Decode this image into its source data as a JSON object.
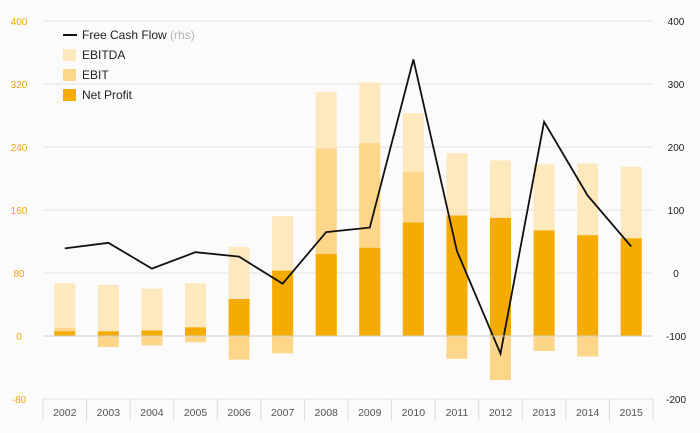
{
  "chart_data": {
    "type": "bar",
    "categories": [
      "2002",
      "2003",
      "2004",
      "2005",
      "2006",
      "2007",
      "2008",
      "2009",
      "2010",
      "2011",
      "2012",
      "2013",
      "2014",
      "2015"
    ],
    "series": [
      {
        "name": "EBITDA",
        "type": "bar",
        "color": "#fee9bf",
        "values": [
          67,
          65,
          60,
          67,
          113,
          152,
          310,
          322,
          283,
          232,
          223,
          218,
          219,
          215
        ]
      },
      {
        "name": "EBIT",
        "type": "bar",
        "color": "#fdd68a",
        "values": [
          10,
          -14,
          -12,
          -8,
          -30,
          -22,
          238,
          245,
          208,
          -29,
          -56,
          -19,
          -26,
          124
        ]
      },
      {
        "name": "Net Profit",
        "type": "bar",
        "color": "#f5ab00",
        "values": [
          6,
          6,
          7,
          11,
          47,
          83,
          104,
          112,
          144,
          153,
          150,
          134,
          128,
          124
        ]
      },
      {
        "name": "Free Cash Flow",
        "name_note": "(rhs)",
        "type": "line",
        "axis": "right",
        "color": "#111111",
        "values": [
          39,
          48,
          7,
          33,
          26,
          -17,
          65,
          72,
          339,
          35,
          -128,
          240,
          123,
          42
        ]
      }
    ],
    "y_left": {
      "min": -80,
      "max": 400,
      "ticks": [
        -80,
        0,
        80,
        160,
        240,
        320,
        400
      ],
      "tick_color": "#f0a500"
    },
    "y_right": {
      "min": -200,
      "max": 400,
      "ticks": [
        -200,
        -100,
        0,
        100,
        200,
        300,
        400
      ],
      "tick_color": "#222222"
    },
    "grid": true,
    "legend": {
      "placement": "top-left",
      "items": [
        {
          "label": "Free Cash Flow",
          "suffix": "(rhs)",
          "marker": "line",
          "color": "#111111"
        },
        {
          "label": "EBITDA",
          "marker": "box",
          "color": "#fee9bf"
        },
        {
          "label": "EBIT",
          "marker": "box",
          "color": "#fdd68a"
        },
        {
          "label": "Net Profit",
          "marker": "box",
          "color": "#f5ab00"
        }
      ]
    }
  }
}
